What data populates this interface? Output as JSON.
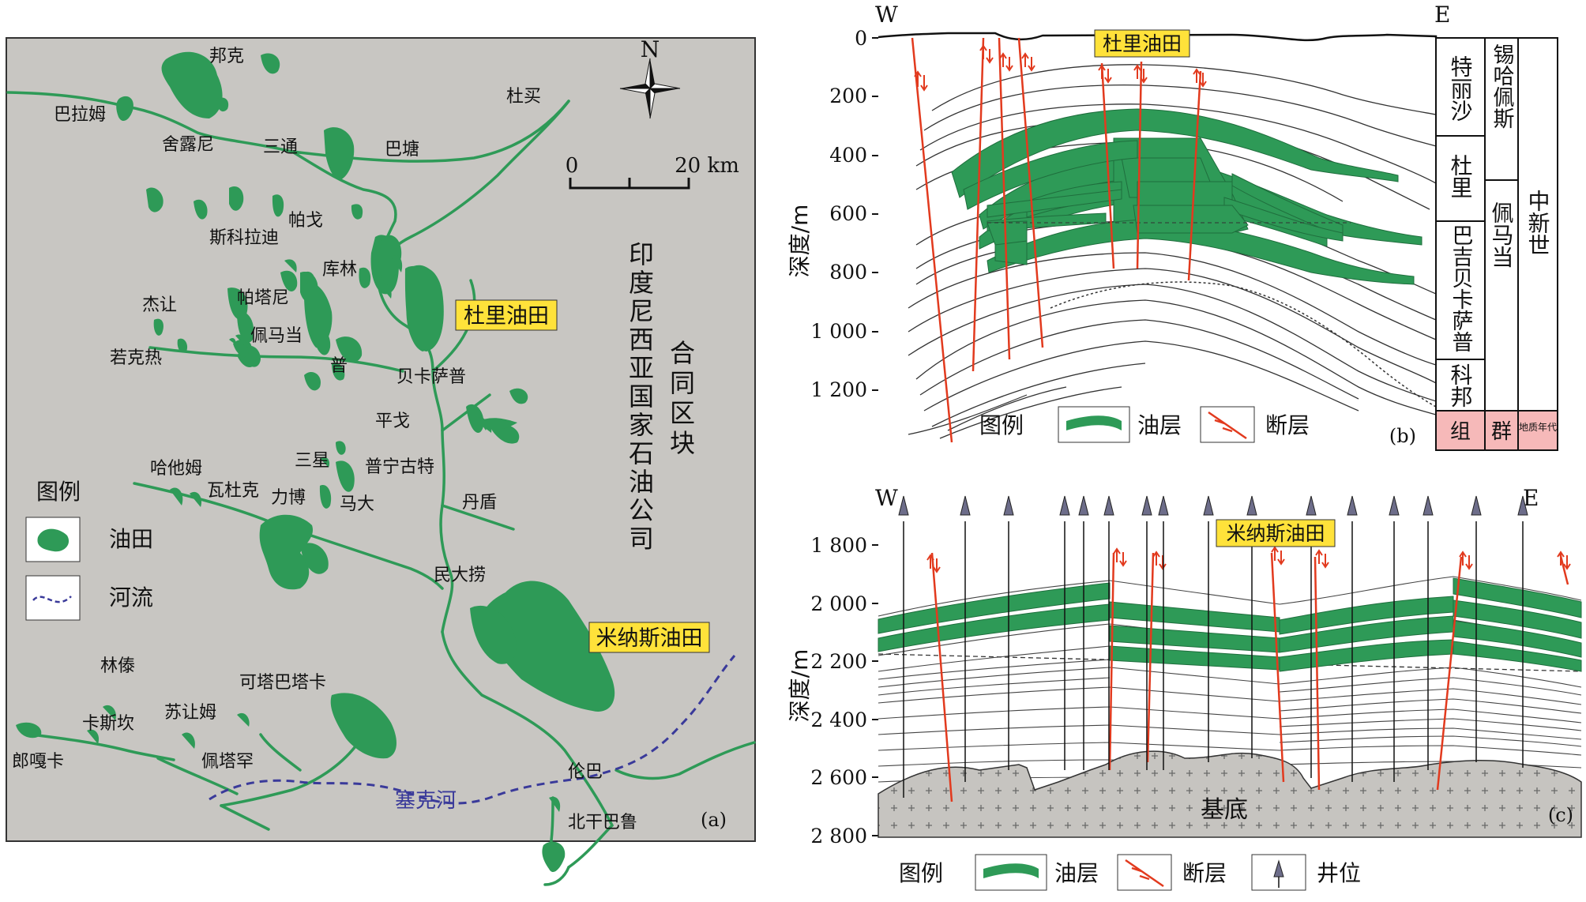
{
  "map": {
    "panel_label": "(a)",
    "north": "N",
    "scale": {
      "zero": "0",
      "end": "20 km"
    },
    "block_text_1": "印度尼西亚国家石油公司",
    "block_text_2": "合同区块",
    "river_name": "塞克河",
    "duri_label": "杜里油田",
    "minas_label": "米纳斯油田",
    "legend": {
      "title": "图例",
      "oilfield": "油田",
      "river": "河流"
    },
    "places": {
      "bangke": "邦克",
      "balamu": "巴拉姆",
      "shelouni": "舍露尼",
      "santong": "三通",
      "batang": "巴塘",
      "dumai": "杜买",
      "sikeladi": "斯科拉迪",
      "pageo": "帕戈",
      "kulin": "库林",
      "patani": "帕塔尼",
      "jierang": "杰让",
      "peimadang": "佩马当",
      "ruokere": "若克热",
      "pu": "普",
      "beikasapu": "贝卡萨普",
      "pingge": "平戈",
      "sanxing": "三星",
      "puninggute": "普宁古特",
      "hatamu": "哈他姆",
      "waduke": "瓦杜克",
      "libo": "力博",
      "mada": "马大",
      "dandun": "丹盾",
      "mindalao": "民大捞",
      "lindai": "林傣",
      "kasikan": "卡斯坎",
      "surangmu": "苏让姆",
      "ketabataka": "可塔巴塔卡",
      "langgaka": "郎嘎卡",
      "peitahan": "佩塔罕",
      "lunba": "伦巴",
      "beiganbalu": "北干巴鲁"
    }
  },
  "section_b": {
    "panel_label": "(b)",
    "west": "W",
    "east": "E",
    "title": "杜里油田",
    "ylabel": "深度/m",
    "depth_ticks": [
      "0",
      "200",
      "400",
      "600",
      "800",
      "1 000",
      "1 200"
    ],
    "strat": {
      "formations": [
        "特丽沙",
        "杜里",
        "巴吉贝卡萨普",
        "科邦"
      ],
      "group": [
        "锡哈佩斯",
        "佩马当"
      ],
      "age": "中新世",
      "footer": [
        "组",
        "群",
        "地质年代"
      ]
    },
    "legend": {
      "title": "图例",
      "oil": "油层",
      "fault": "断层"
    }
  },
  "section_c": {
    "panel_label": "(c)",
    "west": "W",
    "east": "E",
    "title": "米纳斯油田",
    "ylabel": "深度/m",
    "depth_ticks": [
      "1 800",
      "2 000",
      "2 200",
      "2 400",
      "2 600",
      "2 800"
    ],
    "basement": "基底",
    "legend": {
      "title": "图例",
      "oil": "油层",
      "fault": "断层",
      "well": "井位"
    }
  },
  "colors": {
    "map_bg": "#c8c6c2",
    "oil": "#2e9a57",
    "road": "#2e9a57",
    "river": "#3a3a9a",
    "fault": "#e23a1e",
    "label_bg": "#ffe23a",
    "basement": "#c6c4c0",
    "group_footer": "#f6b9b9"
  }
}
